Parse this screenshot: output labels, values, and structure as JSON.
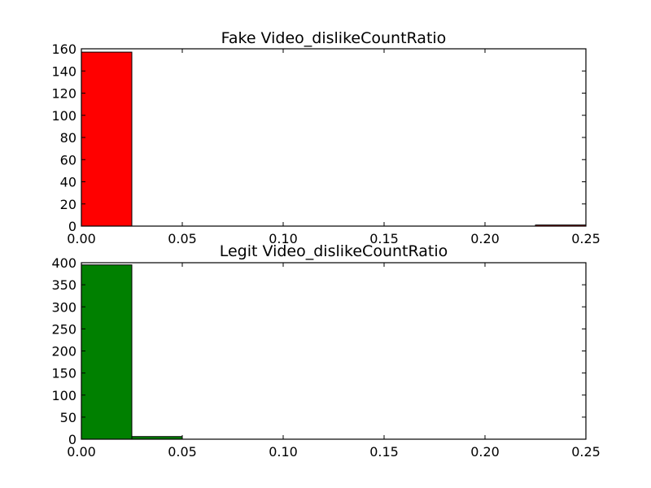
{
  "chart_data": [
    {
      "type": "bar",
      "title": "Fake Video_dislikeCountRatio",
      "xlabel": "",
      "ylabel": "",
      "xlim": [
        0,
        0.25
      ],
      "ylim": [
        0,
        160
      ],
      "xticks": [
        "0.00",
        "0.05",
        "0.10",
        "0.15",
        "0.20",
        "0.25"
      ],
      "yticks": [
        "0",
        "20",
        "40",
        "60",
        "80",
        "100",
        "120",
        "140",
        "160"
      ],
      "bin_width": 0.025,
      "bins": [
        0,
        0.025,
        0.05,
        0.075,
        0.1,
        0.125,
        0.15,
        0.175,
        0.2,
        0.225
      ],
      "values": [
        157,
        0,
        0,
        0,
        0,
        0,
        0,
        0,
        0,
        1
      ],
      "color": "#ff0000",
      "grid": false
    },
    {
      "type": "bar",
      "title": "Legit Video_dislikeCountRatio",
      "xlabel": "",
      "ylabel": "",
      "xlim": [
        0,
        0.25
      ],
      "ylim": [
        0,
        400
      ],
      "xticks": [
        "0.00",
        "0.05",
        "0.10",
        "0.15",
        "0.20",
        "0.25"
      ],
      "yticks": [
        "0",
        "50",
        "100",
        "150",
        "200",
        "250",
        "300",
        "350",
        "400"
      ],
      "bin_width": 0.025,
      "bins": [
        0,
        0.025,
        0.05,
        0.075,
        0.1,
        0.125,
        0.15,
        0.175,
        0.2,
        0.225
      ],
      "values": [
        395,
        6,
        0,
        0,
        0,
        0,
        0,
        0,
        0,
        0
      ],
      "color": "#008000",
      "grid": false
    }
  ]
}
